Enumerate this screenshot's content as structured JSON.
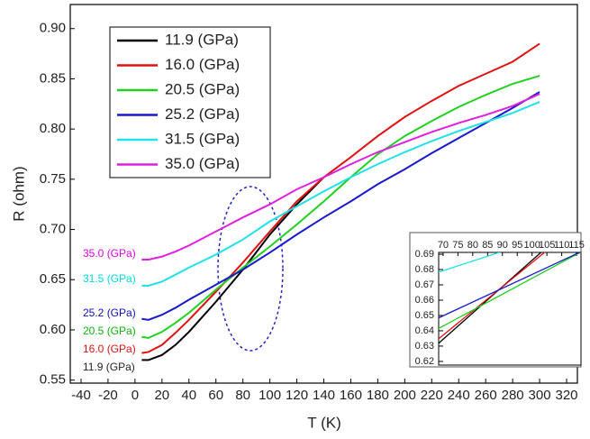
{
  "chart_data": [
    {
      "type": "line",
      "xlabel": "T (K)",
      "ylabel": "R (ohm)",
      "annotations": [
        "35.0 (GPa)",
        "31.5 (GPa)",
        "25.2 (GPa)",
        "20.5 (GPa)",
        "16.0 (GPa)",
        "11.9 (GPa)"
      ],
      "x": [
        5,
        10,
        20,
        30,
        40,
        60,
        80,
        100,
        120,
        140,
        160,
        180,
        200,
        220,
        240,
        260,
        280,
        300
      ],
      "series": [
        {
          "name": "11.9 (GPa)",
          "color": "#000000",
          "values": [
            0.57,
            0.57,
            0.575,
            0.585,
            0.598,
            0.628,
            0.66,
            0.695,
            0.725,
            0.752,
            null,
            null,
            null,
            null,
            null,
            null,
            null,
            null
          ]
        },
        {
          "name": "16.0 (GPa)",
          "color": "#e01010",
          "values": [
            0.577,
            0.578,
            0.585,
            0.597,
            0.61,
            0.638,
            0.667,
            0.698,
            0.728,
            0.752,
            0.772,
            0.793,
            0.812,
            0.828,
            0.843,
            0.855,
            0.867,
            0.885
          ]
        },
        {
          "name": "20.5 (GPa)",
          "color": "#20d020",
          "values": [
            0.593,
            0.592,
            0.598,
            0.607,
            0.617,
            0.64,
            0.662,
            0.683,
            0.705,
            0.728,
            0.752,
            0.775,
            0.793,
            0.808,
            0.822,
            0.834,
            0.845,
            0.853
          ]
        },
        {
          "name": "25.2 (GPa)",
          "color": "#1a1acc",
          "values": [
            0.611,
            0.61,
            0.615,
            0.622,
            0.63,
            0.645,
            0.66,
            0.677,
            0.695,
            0.712,
            0.728,
            0.745,
            0.76,
            0.776,
            0.791,
            0.806,
            0.821,
            0.837
          ]
        },
        {
          "name": "31.5 (GPa)",
          "color": "#20e0e8",
          "values": [
            0.644,
            0.644,
            0.648,
            0.655,
            0.662,
            0.675,
            0.69,
            0.708,
            0.723,
            0.738,
            0.752,
            0.765,
            0.777,
            0.788,
            0.798,
            0.807,
            0.816,
            0.827
          ]
        },
        {
          "name": "35.0 (GPa)",
          "color": "#e020e0",
          "values": [
            0.67,
            0.67,
            0.673,
            0.678,
            0.684,
            0.698,
            0.712,
            0.725,
            0.74,
            0.752,
            0.765,
            0.777,
            0.787,
            0.797,
            0.806,
            0.814,
            0.823,
            0.835
          ]
        }
      ],
      "xlim": [
        -48,
        328
      ],
      "ylim": [
        0.547,
        0.924
      ],
      "xticks": [
        -40,
        -20,
        0,
        20,
        40,
        60,
        80,
        100,
        120,
        140,
        160,
        180,
        200,
        220,
        240,
        260,
        280,
        300,
        320
      ],
      "yticks": [
        0.55,
        {
          "value": 0.6,
          "label": "0.60"
        },
        0.65,
        {
          "value": 0.7,
          "label": "0.70"
        },
        0.75,
        {
          "value": 0.8,
          "label": "0.80"
        },
        0.85,
        {
          "value": 0.9,
          "label": "0.90"
        }
      ],
      "legend": "upper left"
    },
    {
      "type": "line",
      "x": [
        68,
        118
      ],
      "series": [
        {
          "color": "#000000",
          "values": [
            0.631,
            0.717
          ]
        },
        {
          "color": "#e01010",
          "values": [
            0.634,
            0.713
          ]
        },
        {
          "color": "#20d020",
          "values": [
            0.641,
            0.693
          ]
        },
        {
          "color": "#1a1acc",
          "values": [
            0.648,
            0.693
          ]
        },
        {
          "color": "#20e0e8",
          "values": [
            0.678,
            0.7095
          ]
        }
      ],
      "xlim": [
        68.5,
        116.5
      ],
      "ylim": [
        0.6176,
        0.6912
      ],
      "xticks": [
        70,
        75,
        80,
        85,
        90,
        95,
        100,
        105,
        110,
        115
      ],
      "yticks": [
        0.62,
        0.63,
        0.64,
        0.65,
        0.66,
        0.67,
        0.68,
        0.69
      ]
    }
  ]
}
